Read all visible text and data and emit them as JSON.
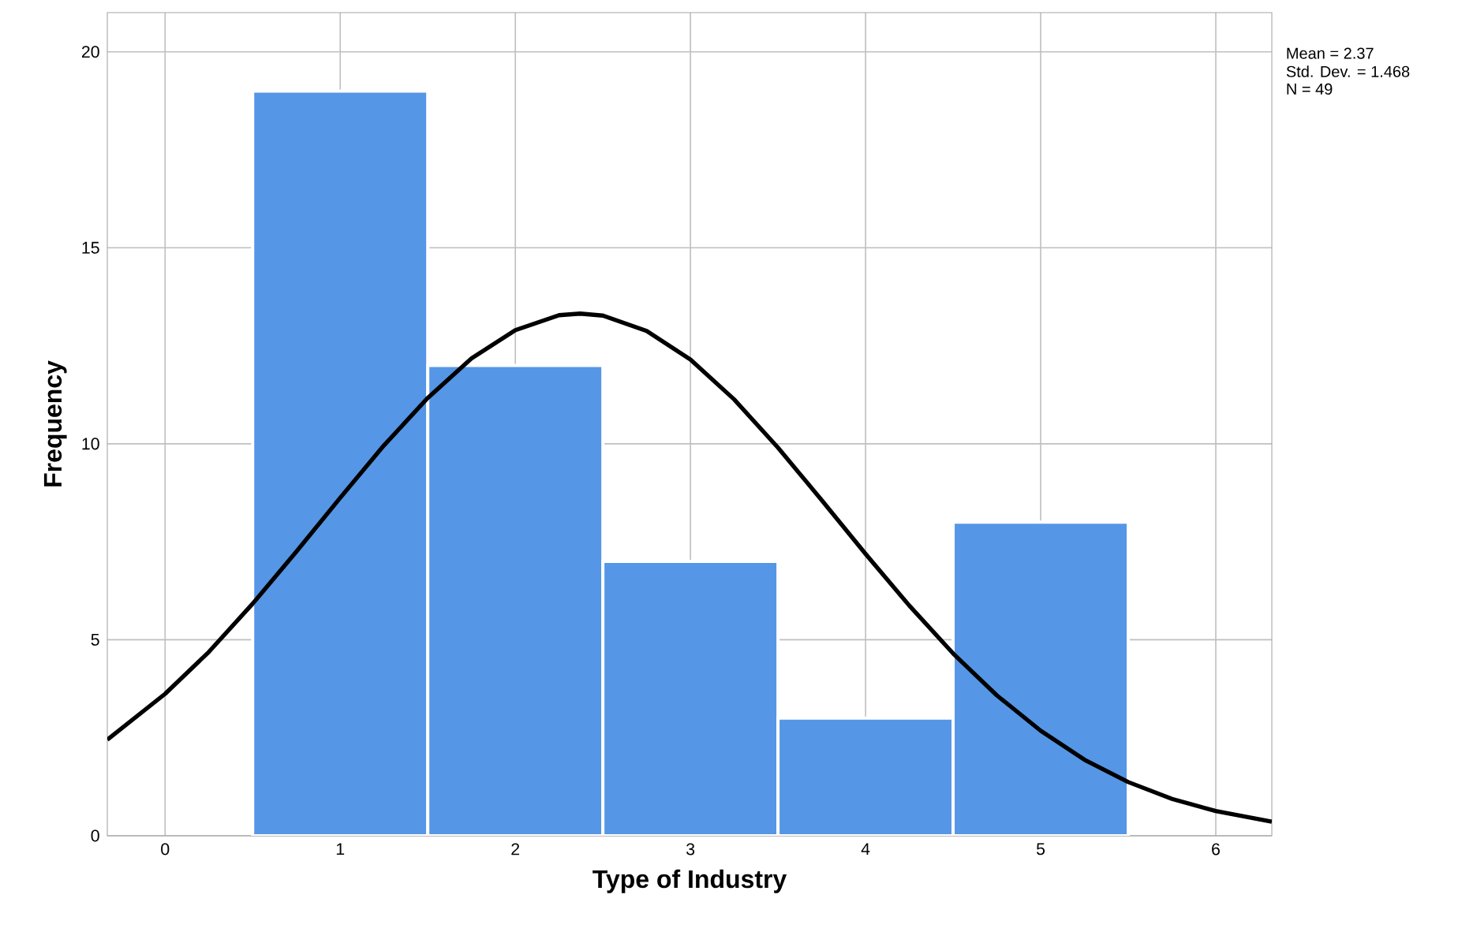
{
  "chart_data": {
    "type": "histogram",
    "xlabel": "Type of Industry",
    "ylabel": "Frequency",
    "bins": [
      0.5,
      1.5,
      2.5,
      3.5,
      4.5,
      5.5
    ],
    "values": [
      19,
      12,
      7,
      3,
      8
    ],
    "color": "#5596e6",
    "series": [
      {
        "type": "line",
        "color": "#000000",
        "x": [
          -0.33,
          0,
          0.25,
          0.5,
          0.75,
          1,
          1.25,
          1.5,
          1.75,
          2,
          2.25,
          2.37,
          2.5,
          2.75,
          3,
          3.25,
          3.5,
          3.75,
          4,
          4.25,
          4.5,
          4.75,
          5,
          5.25,
          5.5,
          5.75,
          6,
          6.32
        ],
        "values": [
          2.45,
          3.62,
          4.69,
          5.92,
          7.25,
          8.62,
          9.96,
          11.17,
          12.18,
          12.9,
          13.28,
          13.32,
          13.27,
          12.88,
          12.15,
          11.13,
          9.9,
          8.56,
          7.19,
          5.87,
          4.65,
          3.58,
          2.68,
          1.94,
          1.37,
          0.94,
          0.63,
          0.36
        ]
      }
    ],
    "xlim": [
      -0.33,
      6.32
    ],
    "ylim": [
      0,
      21
    ],
    "xticks": [
      0,
      1,
      2,
      3,
      4,
      5,
      6
    ],
    "yticks": [
      0,
      5,
      10,
      15,
      20
    ],
    "grid": true,
    "marker": "none",
    "line_style": "solid",
    "annotations": [
      "Mean = 2.37",
      "Std. Dev. = 1.468",
      "N = 49"
    ]
  }
}
